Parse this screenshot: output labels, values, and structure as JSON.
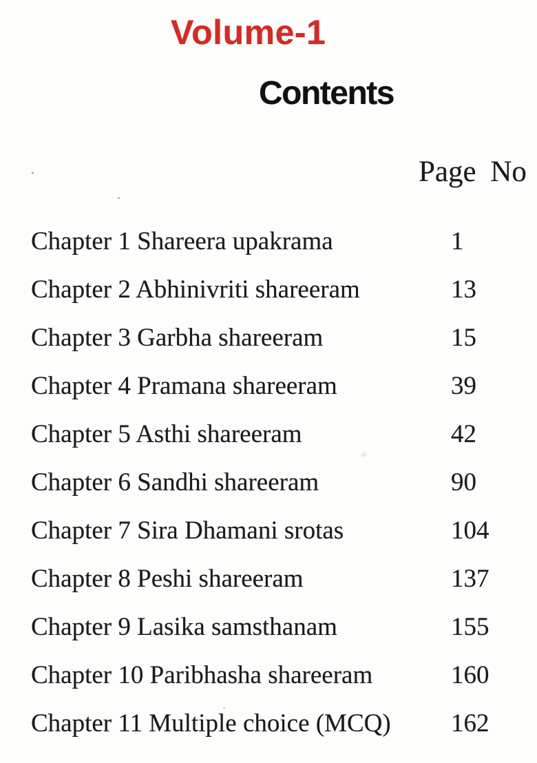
{
  "page": {
    "volume_title": "Volume-1",
    "contents_title": "Contents",
    "page_no_header": "Page No",
    "toc": [
      {
        "label": "Chapter 1 Shareera upakrama",
        "page": "1"
      },
      {
        "label": "Chapter 2 Abhinivriti shareeram",
        "page": "13"
      },
      {
        "label": "Chapter 3 Garbha shareeram",
        "page": "15"
      },
      {
        "label": "Chapter 4 Pramana shareeram",
        "page": "39"
      },
      {
        "label": "Chapter 5 Asthi shareeram",
        "page": "42"
      },
      {
        "label": "Chapter 6 Sandhi shareeram",
        "page": "90"
      },
      {
        "label": "Chapter 7 Sira Dhamani srotas",
        "page": "104"
      },
      {
        "label": "Chapter 8 Peshi shareeram",
        "page": "137"
      },
      {
        "label": "Chapter 9 Lasika samsthanam",
        "page": "155"
      },
      {
        "label": "Chapter 10 Paribhasha shareeram",
        "page": "160"
      },
      {
        "label": "Chapter 11 Multiple choice (MCQ)",
        "page": "162"
      }
    ]
  },
  "colors": {
    "volume_red": "#d32b25",
    "text_black": "#1b1b1b",
    "background": "#fdfdfc"
  }
}
